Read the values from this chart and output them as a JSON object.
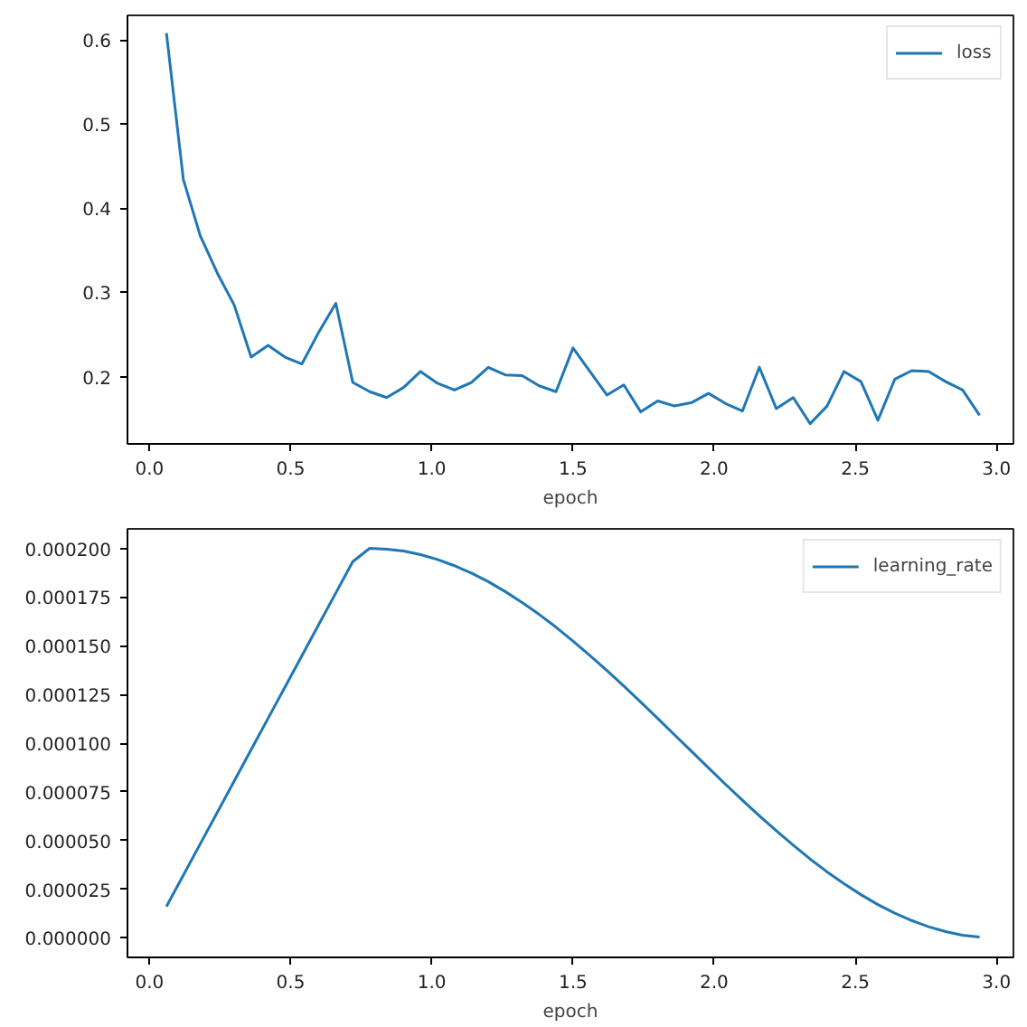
{
  "chart_data": [
    {
      "type": "line",
      "xlabel": "epoch",
      "legend": "top right",
      "grid": false,
      "x": [
        0.06,
        0.12,
        0.18,
        0.24,
        0.3,
        0.36,
        0.42,
        0.48,
        0.54,
        0.6,
        0.66,
        0.72,
        0.78,
        0.84,
        0.9,
        0.96,
        1.02,
        1.08,
        1.14,
        1.2,
        1.26,
        1.32,
        1.38,
        1.44,
        1.5,
        1.56,
        1.62,
        1.68,
        1.74,
        1.8,
        1.86,
        1.92,
        1.98,
        2.04,
        2.1,
        2.16,
        2.22,
        2.28,
        2.34,
        2.4,
        2.46,
        2.52,
        2.58,
        2.64,
        2.7,
        2.76,
        2.82,
        2.88,
        2.94
      ],
      "series": [
        {
          "name": "loss",
          "color": "#1f77b4",
          "values": [
            0.608,
            0.434,
            0.367,
            0.323,
            0.285,
            0.223,
            0.237,
            0.223,
            0.215,
            0.253,
            0.287,
            0.193,
            0.182,
            0.175,
            0.187,
            0.206,
            0.192,
            0.184,
            0.193,
            0.211,
            0.202,
            0.201,
            0.189,
            0.182,
            0.234,
            0.206,
            0.178,
            0.19,
            0.158,
            0.171,
            0.165,
            0.169,
            0.18,
            0.168,
            0.159,
            0.211,
            0.162,
            0.175,
            0.144,
            0.165,
            0.206,
            0.194,
            0.148,
            0.197,
            0.207,
            0.206,
            0.194,
            0.184,
            0.154
          ]
        }
      ],
      "xlim": [
        -0.078,
        3.06
      ],
      "ylim": [
        0.12,
        0.629
      ],
      "xticks": [
        {
          "value": 0,
          "label": "0.0"
        },
        {
          "value": 0.5,
          "label": "0.5"
        },
        {
          "value": 1,
          "label": "1.0"
        },
        {
          "value": 1.5,
          "label": "1.5"
        },
        {
          "value": 2,
          "label": "2.0"
        },
        {
          "value": 2.5,
          "label": "2.5"
        },
        {
          "value": 3,
          "label": "3.0"
        }
      ],
      "yticks": [
        {
          "value": 0.2,
          "label": "0.2"
        },
        0.3,
        0.4,
        0.5,
        0.6
      ]
    },
    {
      "type": "line",
      "xlabel": "epoch",
      "legend": "top right",
      "grid": false,
      "x": [
        0.06,
        0.12,
        0.18,
        0.24,
        0.3,
        0.36,
        0.42,
        0.48,
        0.54,
        0.6,
        0.66,
        0.72,
        0.78,
        0.84,
        0.9,
        0.96,
        1.02,
        1.08,
        1.14,
        1.2,
        1.26,
        1.32,
        1.38,
        1.44,
        1.5,
        1.56,
        1.62,
        1.68,
        1.74,
        1.8,
        1.86,
        1.92,
        1.98,
        2.04,
        2.1,
        2.16,
        2.22,
        2.28,
        2.34,
        2.4,
        2.46,
        2.52,
        2.58,
        2.64,
        2.7,
        2.76,
        2.82,
        2.88,
        2.94
      ],
      "series": [
        {
          "name": "learning_rate",
          "color": "#1f77b4",
          "values": [
            1.61e-05,
            3.22e-05,
            4.83e-05,
            6.44e-05,
            8.05e-05,
            9.66e-05,
            0.0001127,
            0.0001288,
            0.0001449,
            0.000161,
            0.0001771,
            0.0001932,
            0.0002,
            0.0001996,
            0.0001986,
            0.0001968,
            0.0001943,
            0.0001911,
            0.0001873,
            0.0001829,
            0.0001778,
            0.0001722,
            0.0001661,
            0.0001595,
            0.0001524,
            0.000145,
            0.0001373,
            0.0001293,
            0.0001211,
            0.0001127,
            0.0001042,
            9.58e-05,
            8.73e-05,
            7.89e-05,
            7.07e-05,
            6.27e-05,
            5.5e-05,
            4.76e-05,
            4.05e-05,
            3.39e-05,
            2.78e-05,
            2.22e-05,
            1.71e-05,
            1.27e-05,
            8.9e-06,
            5.7e-06,
            3.2e-06,
            1.4e-06,
            4e-07
          ]
        }
      ],
      "xlim": [
        -0.078,
        3.06
      ],
      "ylim": [
        -1e-05,
        0.00021
      ],
      "xticks": [
        {
          "value": 0,
          "label": "0.0"
        },
        {
          "value": 0.5,
          "label": "0.5"
        },
        {
          "value": 1,
          "label": "1.0"
        },
        {
          "value": 1.5,
          "label": "1.5"
        },
        {
          "value": 2,
          "label": "2.0"
        },
        {
          "value": 2.5,
          "label": "2.5"
        },
        {
          "value": 3,
          "label": "3.0"
        }
      ],
      "yticks": [
        {
          "value": 0,
          "label": "0.000000"
        },
        {
          "value": 2.5e-05,
          "label": "0.000025"
        },
        {
          "value": 5e-05,
          "label": "0.000050"
        },
        {
          "value": 7.5e-05,
          "label": "0.000075"
        },
        {
          "value": 0.0001,
          "label": "0.000100"
        },
        {
          "value": 0.000125,
          "label": "0.000125"
        },
        {
          "value": 0.00015,
          "label": "0.000150"
        },
        {
          "value": 0.000175,
          "label": "0.000175"
        },
        {
          "value": 0.0002,
          "label": "0.000200"
        }
      ]
    }
  ]
}
